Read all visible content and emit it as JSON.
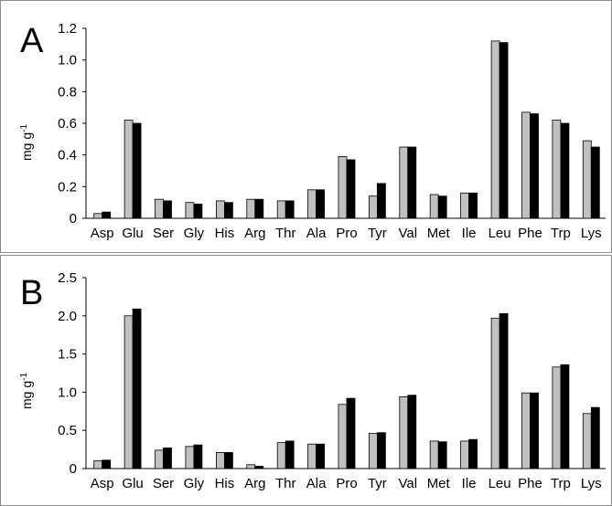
{
  "colors": {
    "series1": "#c0c0c0",
    "series2": "#000000",
    "frame": "#8c8c8c"
  },
  "chart_data": [
    {
      "type": "bar",
      "panel": "A",
      "title": "",
      "xlabel": "",
      "ylabel": "mg g",
      "ylabel_sup": "-1",
      "ylim": [
        0,
        1.2
      ],
      "yticks": [
        "0",
        "0.2",
        "0.4",
        "0.6",
        "0.8",
        "1.0",
        "1.2"
      ],
      "categories": [
        "Asp",
        "Glu",
        "Ser",
        "Gly",
        "His",
        "Arg",
        "Thr",
        "Ala",
        "Pro",
        "Tyr",
        "Val",
        "Met",
        "Ile",
        "Leu",
        "Phe",
        "Trp",
        "Lys"
      ],
      "series": [
        {
          "values": [
            0.03,
            0.62,
            0.12,
            0.1,
            0.11,
            0.12,
            0.11,
            0.18,
            0.39,
            0.14,
            0.45,
            0.15,
            0.16,
            1.12,
            0.67,
            0.62,
            0.49
          ]
        },
        {
          "values": [
            0.04,
            0.6,
            0.11,
            0.09,
            0.1,
            0.12,
            0.11,
            0.18,
            0.37,
            0.22,
            0.45,
            0.14,
            0.16,
            1.11,
            0.66,
            0.6,
            0.45
          ]
        }
      ],
      "grid": false,
      "legend": "none"
    },
    {
      "type": "bar",
      "panel": "B",
      "title": "",
      "xlabel": "",
      "ylabel": "mg g",
      "ylabel_sup": "-1",
      "ylim": [
        0,
        2.5
      ],
      "yticks": [
        "0",
        "0.5",
        "1.0",
        "1.5",
        "2.0",
        "2.5"
      ],
      "categories": [
        "Asp",
        "Glu",
        "Ser",
        "Gly",
        "His",
        "Arg",
        "Thr",
        "Ala",
        "Pro",
        "Tyr",
        "Val",
        "Met",
        "Ile",
        "Leu",
        "Phe",
        "Trp",
        "Lys"
      ],
      "series": [
        {
          "values": [
            0.1,
            2.0,
            0.24,
            0.29,
            0.21,
            0.05,
            0.34,
            0.32,
            0.84,
            0.46,
            0.94,
            0.36,
            0.36,
            1.97,
            0.99,
            1.33,
            0.72
          ]
        },
        {
          "values": [
            0.11,
            2.09,
            0.27,
            0.31,
            0.21,
            0.03,
            0.36,
            0.32,
            0.92,
            0.47,
            0.96,
            0.35,
            0.38,
            2.03,
            0.99,
            1.36,
            0.8
          ]
        }
      ],
      "grid": false,
      "legend": "none"
    }
  ]
}
